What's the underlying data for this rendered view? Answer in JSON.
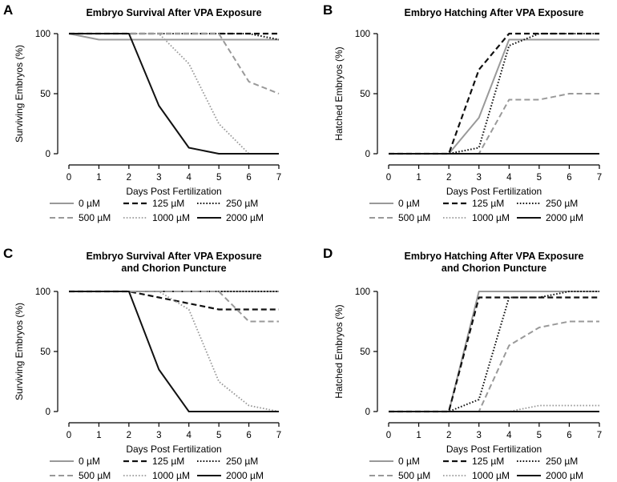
{
  "series_styles": [
    {
      "name": "0 µM",
      "color": "#999999",
      "dash": "",
      "width": 2
    },
    {
      "name": "125 µM",
      "color": "#111111",
      "dash": "7,4",
      "width": 2.2
    },
    {
      "name": "250 µM",
      "color": "#111111",
      "dash": "1.6,2.2",
      "width": 2
    },
    {
      "name": "500 µM",
      "color": "#999999",
      "dash": "7,4",
      "width": 2
    },
    {
      "name": "1000 µM",
      "color": "#999999",
      "dash": "1.6,2.2",
      "width": 1.8
    },
    {
      "name": "2000 µM",
      "color": "#111111",
      "dash": "",
      "width": 2
    }
  ],
  "chart_data": [
    {
      "type": "line",
      "panel": "A",
      "title_lines": [
        "Embryo Survival After VPA Exposure"
      ],
      "xlabel": "Days Post Fertilization",
      "ylabel": "Surviving Embryos (%)",
      "xlim": [
        0,
        7
      ],
      "ylim": [
        0,
        100
      ],
      "x_ticks": [
        0,
        1,
        2,
        3,
        4,
        5,
        6,
        7
      ],
      "y_ticks": [
        0,
        50,
        100
      ],
      "x": [
        0,
        1,
        2,
        3,
        4,
        5,
        6,
        7
      ],
      "series": [
        {
          "name": "0 µM",
          "values": [
            100,
            95,
            95,
            95,
            95,
            95,
            95,
            95
          ]
        },
        {
          "name": "125 µM",
          "values": [
            100,
            100,
            100,
            100,
            100,
            100,
            100,
            100
          ]
        },
        {
          "name": "250 µM",
          "values": [
            100,
            100,
            100,
            100,
            100,
            100,
            100,
            95
          ]
        },
        {
          "name": "500 µM",
          "values": [
            100,
            100,
            100,
            100,
            100,
            100,
            60,
            50
          ]
        },
        {
          "name": "1000 µM",
          "values": [
            100,
            100,
            100,
            100,
            75,
            25,
            0,
            0
          ]
        },
        {
          "name": "2000 µM",
          "values": [
            100,
            100,
            100,
            40,
            5,
            0,
            0,
            0
          ]
        }
      ]
    },
    {
      "type": "line",
      "panel": "B",
      "title_lines": [
        "Embryo Hatching After VPA Exposure"
      ],
      "xlabel": "Days Post Fertilization",
      "ylabel": "Hatched Embryos (%)",
      "xlim": [
        0,
        7
      ],
      "ylim": [
        0,
        100
      ],
      "x_ticks": [
        0,
        1,
        2,
        3,
        4,
        5,
        6,
        7
      ],
      "y_ticks": [
        0,
        50,
        100
      ],
      "x": [
        0,
        1,
        2,
        3,
        4,
        5,
        6,
        7
      ],
      "series": [
        {
          "name": "0 µM",
          "values": [
            0,
            0,
            0,
            30,
            95,
            95,
            95,
            95
          ]
        },
        {
          "name": "125 µM",
          "values": [
            0,
            0,
            0,
            70,
            100,
            100,
            100,
            100
          ]
        },
        {
          "name": "250 µM",
          "values": [
            0,
            0,
            0,
            5,
            90,
            100,
            100,
            100
          ]
        },
        {
          "name": "500 µM",
          "values": [
            0,
            0,
            0,
            0,
            45,
            45,
            50,
            50
          ]
        },
        {
          "name": "1000 µM",
          "values": [
            0,
            0,
            0,
            0,
            0,
            0,
            0,
            0
          ]
        },
        {
          "name": "2000 µM",
          "values": [
            0,
            0,
            0,
            0,
            0,
            0,
            0,
            0
          ]
        }
      ]
    },
    {
      "type": "line",
      "panel": "C",
      "title_lines": [
        "Embryo Survival After VPA Exposure",
        "and Chorion Puncture"
      ],
      "xlabel": "Days Post Fertilization",
      "ylabel": "Surviving Embryos (%)",
      "xlim": [
        0,
        7
      ],
      "ylim": [
        0,
        100
      ],
      "x_ticks": [
        0,
        1,
        2,
        3,
        4,
        5,
        6,
        7
      ],
      "y_ticks": [
        0,
        50,
        100
      ],
      "x": [
        0,
        1,
        2,
        3,
        4,
        5,
        6,
        7
      ],
      "series": [
        {
          "name": "0 µM",
          "values": [
            100,
            100,
            100,
            100,
            100,
            100,
            100,
            100
          ]
        },
        {
          "name": "125 µM",
          "values": [
            100,
            100,
            100,
            95,
            90,
            85,
            85,
            85
          ]
        },
        {
          "name": "250 µM",
          "values": [
            100,
            100,
            100,
            100,
            100,
            100,
            100,
            100
          ]
        },
        {
          "name": "500 µM",
          "values": [
            100,
            100,
            100,
            100,
            100,
            100,
            75,
            75
          ]
        },
        {
          "name": "1000 µM",
          "values": [
            100,
            100,
            100,
            100,
            85,
            25,
            5,
            0
          ]
        },
        {
          "name": "2000 µM",
          "values": [
            100,
            100,
            100,
            35,
            0,
            0,
            0,
            0
          ]
        }
      ]
    },
    {
      "type": "line",
      "panel": "D",
      "title_lines": [
        "Embryo Hatching After VPA Exposure",
        "and Chorion Puncture"
      ],
      "xlabel": "Days Post Fertilization",
      "ylabel": "Hatched Embryos (%)",
      "xlim": [
        0,
        7
      ],
      "ylim": [
        0,
        100
      ],
      "x_ticks": [
        0,
        1,
        2,
        3,
        4,
        5,
        6,
        7
      ],
      "y_ticks": [
        0,
        50,
        100
      ],
      "x": [
        0,
        1,
        2,
        3,
        4,
        5,
        6,
        7
      ],
      "series": [
        {
          "name": "0 µM",
          "values": [
            0,
            0,
            0,
            100,
            100,
            100,
            100,
            100
          ]
        },
        {
          "name": "125 µM",
          "values": [
            0,
            0,
            0,
            95,
            95,
            95,
            95,
            95
          ]
        },
        {
          "name": "250 µM",
          "values": [
            0,
            0,
            0,
            10,
            95,
            95,
            100,
            100
          ]
        },
        {
          "name": "500 µM",
          "values": [
            0,
            0,
            0,
            0,
            55,
            70,
            75,
            75
          ]
        },
        {
          "name": "1000 µM",
          "values": [
            0,
            0,
            0,
            0,
            0,
            5,
            5,
            5
          ]
        },
        {
          "name": "2000 µM",
          "values": [
            0,
            0,
            0,
            0,
            0,
            0,
            0,
            0
          ]
        }
      ]
    }
  ]
}
